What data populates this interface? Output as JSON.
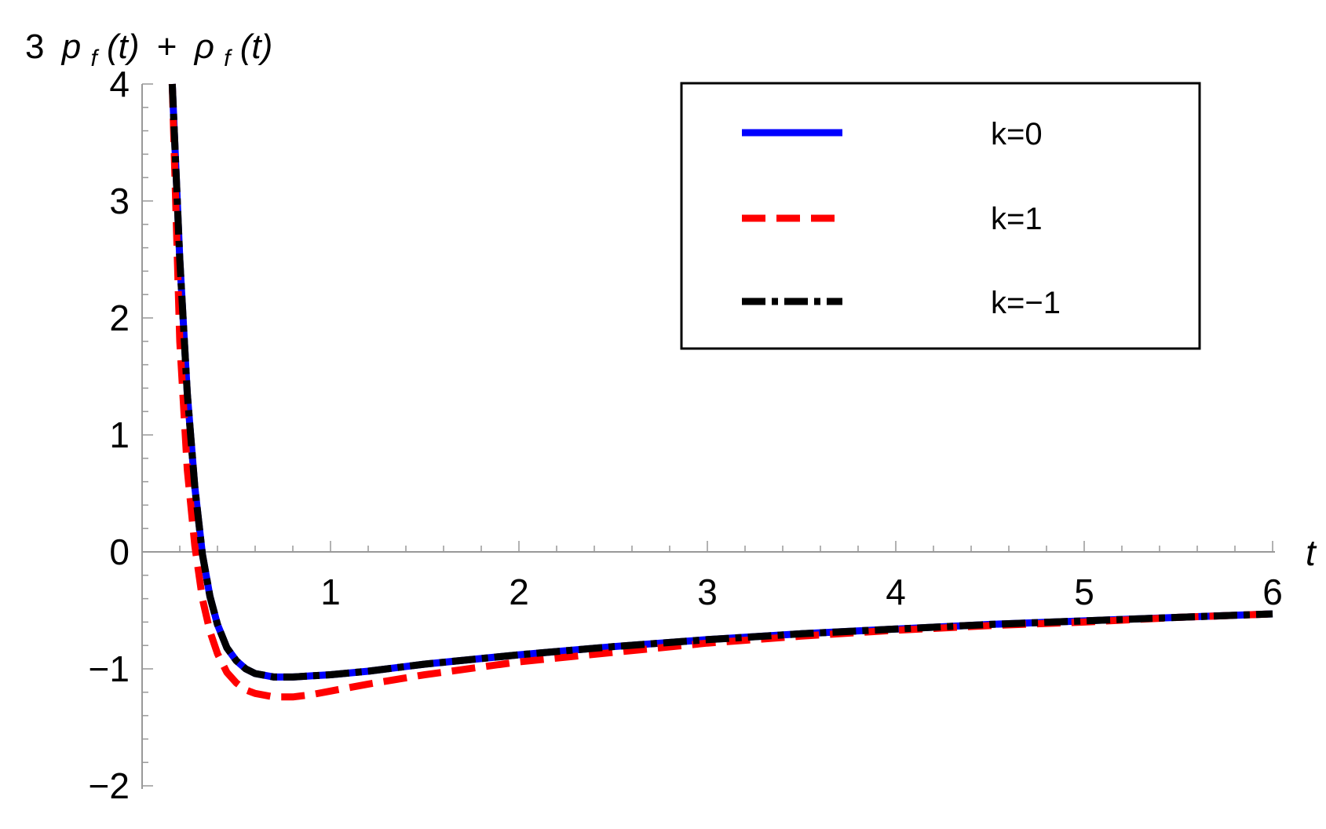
{
  "chart_data": {
    "type": "line",
    "ylabel_parts": {
      "coef": "3",
      "p": "p",
      "sub1": "f",
      "args1": "(t)",
      "plus": "+",
      "rho": "ρ",
      "sub2": "f",
      "args2": "(t)"
    },
    "xlabel": "t",
    "xlim": [
      0,
      6
    ],
    "ylim": [
      -2,
      4
    ],
    "xticks": [
      {
        "value": 1,
        "label": "1"
      },
      {
        "value": 2,
        "label": "2"
      },
      {
        "value": 3,
        "label": "3"
      },
      {
        "value": 4,
        "label": "4"
      },
      {
        "value": 5,
        "label": "5"
      },
      {
        "value": 6,
        "label": "6"
      }
    ],
    "yticks": [
      {
        "value": -2,
        "label": "−2"
      },
      {
        "value": -1,
        "label": "−1"
      },
      {
        "value": 0,
        "label": "0"
      },
      {
        "value": 1,
        "label": "1"
      },
      {
        "value": 2,
        "label": "2"
      },
      {
        "value": 3,
        "label": "3"
      },
      {
        "value": 4,
        "label": "4"
      }
    ],
    "legend_position": "top-right",
    "series": [
      {
        "name": "k=0",
        "color": "#0000ff",
        "style": "solid",
        "x": [
          0.16,
          0.2,
          0.24,
          0.28,
          0.32,
          0.36,
          0.4,
          0.45,
          0.5,
          0.55,
          0.6,
          0.7,
          0.8,
          0.9,
          1.0,
          1.2,
          1.5,
          2.0,
          2.5,
          3.0,
          3.5,
          4.0,
          4.5,
          5.0,
          5.5,
          6.0
        ],
        "y": [
          4.0,
          2.5,
          1.35,
          0.55,
          -0.02,
          -0.38,
          -0.62,
          -0.82,
          -0.93,
          -1.0,
          -1.04,
          -1.07,
          -1.07,
          -1.06,
          -1.05,
          -1.02,
          -0.96,
          -0.88,
          -0.81,
          -0.75,
          -0.7,
          -0.66,
          -0.62,
          -0.59,
          -0.56,
          -0.53
        ]
      },
      {
        "name": "k=1",
        "color": "#ff0000",
        "style": "dashed",
        "x": [
          0.16,
          0.2,
          0.24,
          0.28,
          0.32,
          0.36,
          0.4,
          0.45,
          0.5,
          0.55,
          0.6,
          0.7,
          0.8,
          0.9,
          1.0,
          1.2,
          1.5,
          2.0,
          2.5,
          3.0,
          3.5,
          4.0,
          4.5,
          5.0,
          5.5,
          6.0
        ],
        "y": [
          4.0,
          1.8,
          0.7,
          0.05,
          -0.4,
          -0.68,
          -0.87,
          -1.03,
          -1.12,
          -1.18,
          -1.21,
          -1.24,
          -1.24,
          -1.22,
          -1.19,
          -1.13,
          -1.05,
          -0.94,
          -0.86,
          -0.78,
          -0.72,
          -0.67,
          -0.63,
          -0.6,
          -0.56,
          -0.53
        ]
      },
      {
        "name": "k=−1",
        "color": "#000000",
        "style": "dashdot",
        "x": [
          0.16,
          0.2,
          0.24,
          0.28,
          0.32,
          0.36,
          0.4,
          0.45,
          0.5,
          0.55,
          0.6,
          0.7,
          0.8,
          0.9,
          1.0,
          1.2,
          1.5,
          2.0,
          2.5,
          3.0,
          3.5,
          4.0,
          4.5,
          5.0,
          5.5,
          6.0
        ],
        "y": [
          4.0,
          2.5,
          1.35,
          0.55,
          -0.02,
          -0.38,
          -0.62,
          -0.82,
          -0.93,
          -1.0,
          -1.04,
          -1.07,
          -1.07,
          -1.06,
          -1.05,
          -1.02,
          -0.96,
          -0.88,
          -0.81,
          -0.75,
          -0.7,
          -0.66,
          -0.62,
          -0.59,
          -0.56,
          -0.53
        ]
      }
    ]
  }
}
